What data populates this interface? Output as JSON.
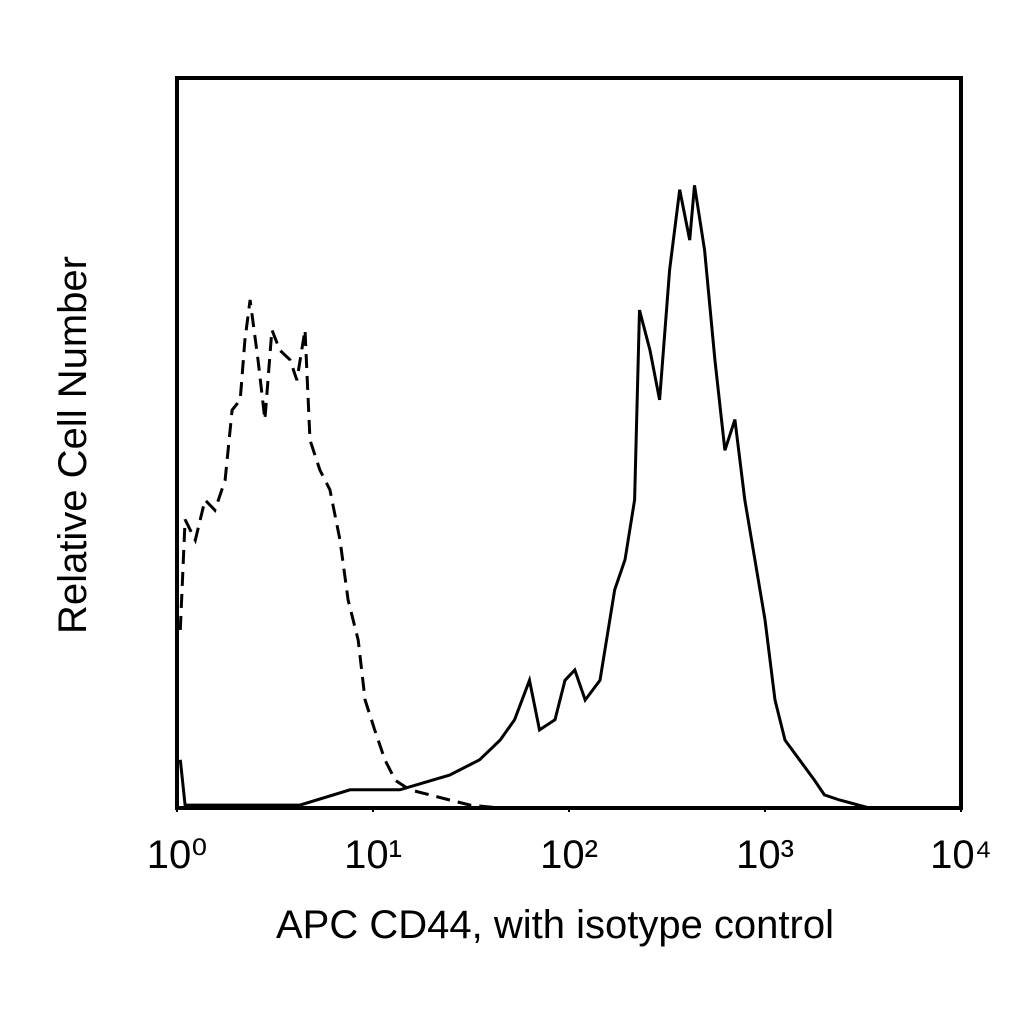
{
  "chart_data": {
    "type": "line",
    "xlabel": "APC CD44, with isotype control",
    "ylabel": "Relative Cell Number",
    "xscale": "log",
    "xlim": [
      1,
      10000
    ],
    "xticks": [
      {
        "value": 1,
        "label": "10⁰"
      },
      {
        "value": 10,
        "label": "10¹"
      },
      {
        "value": 100,
        "label": "10²"
      },
      {
        "value": 1000,
        "label": "10³"
      },
      {
        "value": 10000,
        "label": "10⁴"
      }
    ],
    "ylim": [
      0,
      100
    ],
    "series": [
      {
        "color": "#000000",
        "style": "dashed",
        "x": [
          1.04,
          1.1,
          1.24,
          1.39,
          1.56,
          1.76,
          1.91,
          2.1,
          2.22,
          2.36,
          2.59,
          2.81,
          3.05,
          3.35,
          3.77,
          4.09,
          4.5,
          4.77,
          5.36,
          6.03,
          6.79,
          7.46,
          8.4,
          9.11,
          10.2,
          11.5,
          13.0,
          15.4,
          19.5,
          24.6,
          31.3,
          44.5
        ],
        "values": [
          24.4,
          39.5,
          36.7,
          42.2,
          40.8,
          44.9,
          54.5,
          55.9,
          64.1,
          69.6,
          61.4,
          53.2,
          65.5,
          62.7,
          61.4,
          58.6,
          65.5,
          50.4,
          46.3,
          43.6,
          36.7,
          28.5,
          23.0,
          14.8,
          10.7,
          6.6,
          3.8,
          2.5,
          1.8,
          1.1,
          0.4,
          0
        ]
      },
      {
        "color": "#000000",
        "style": "solid",
        "x": [
          1.04,
          1.1,
          4.24,
          7.64,
          13.7,
          24.6,
          35.0,
          44.5,
          52.8,
          62.9,
          70.7,
          84.8,
          95.4,
          107,
          121,
          144,
          171,
          193,
          216,
          229,
          259,
          290,
          326,
          367,
          413,
          437,
          492,
          555,
          624,
          702,
          789,
          888,
          1000,
          1125,
          1265,
          1500,
          1788,
          2010,
          2400,
          3400
        ],
        "values": [
          6.6,
          0.4,
          0.4,
          2.5,
          2.5,
          4.5,
          6.6,
          9.3,
          12.1,
          17.5,
          10.7,
          12.1,
          17.5,
          18.9,
          14.8,
          17.5,
          29.9,
          34.0,
          42.2,
          68.2,
          62.7,
          55.9,
          73.7,
          84.7,
          77.8,
          85.3,
          76.4,
          61.4,
          49.0,
          53.2,
          42.2,
          34.0,
          25.8,
          14.8,
          9.3,
          6.6,
          3.8,
          1.8,
          1.1,
          0
        ]
      }
    ]
  }
}
